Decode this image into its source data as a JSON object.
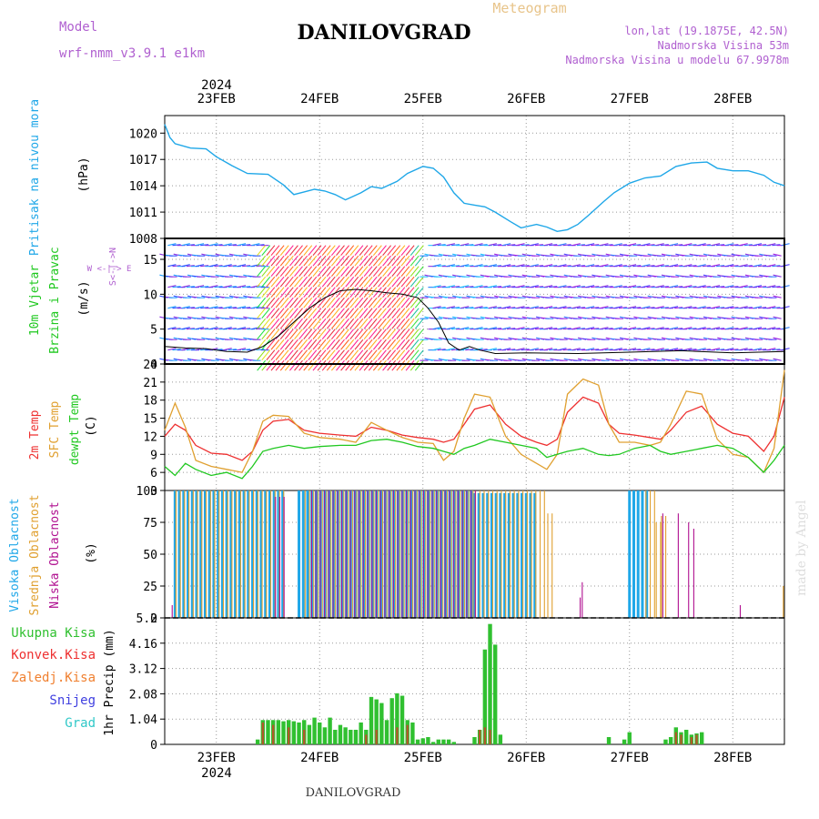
{
  "header": {
    "model_label": "Model",
    "model_name": "wrf-nmm_v3.9.1 e1km",
    "title": "DANILOVGRAD",
    "product": "Meteogram",
    "coords": "lon,lat (19.1875E, 42.5N)",
    "elevation": "Nadmorska Visina 53m",
    "model_elevation": "Nadmorska Visina u modelu 67.9978m"
  },
  "footer": {
    "station": "DANILOVGRAD",
    "credit": "made by Angel"
  },
  "colors": {
    "pressure": "#1fa7e8",
    "temp2m": "#ee3030",
    "sfc": "#e0a030",
    "dew": "#20c820",
    "cloud_high": "#1fa7e8",
    "cloud_mid": "#e0a030",
    "cloud_low": "#b01090",
    "precip_total": "#30c030",
    "precip_conv": "#b05a2a",
    "grid": "#999999"
  },
  "chart_data": {
    "type": "line",
    "x_axis": {
      "year": "2024",
      "labels": [
        "23FEB",
        "24FEB",
        "25FEB",
        "26FEB",
        "27FEB",
        "28FEB"
      ],
      "range_days": [
        22.5,
        28.5
      ]
    },
    "panels": [
      {
        "id": "pressure",
        "type": "line",
        "ylabel_desc": "Pritisak na nivou mora",
        "ylabel_unit": "(hPa)",
        "ylim": [
          1008,
          1022
        ],
        "yticks": [
          1008,
          1011,
          1014,
          1017,
          1020
        ],
        "series": [
          {
            "x": [
              22.5,
              22.55,
              22.6,
              22.75,
              22.9,
              23.0,
              23.15,
              23.3,
              23.5,
              23.65,
              23.75,
              23.85,
              23.95,
              24.05,
              24.15,
              24.25,
              24.4,
              24.5,
              24.6,
              24.75,
              24.85,
              25.0,
              25.1,
              25.2,
              25.3,
              25.4,
              25.5,
              25.6,
              25.7,
              25.85,
              25.95,
              26.1,
              26.2,
              26.3,
              26.4,
              26.5,
              26.6,
              26.75,
              26.85,
              27.0,
              27.15,
              27.3,
              27.45,
              27.6,
              27.75,
              27.85,
              28.0,
              28.15,
              28.3,
              28.4,
              28.5
            ],
            "y": [
              1021,
              1019.5,
              1018.8,
              1018.3,
              1018.2,
              1017.3,
              1016.3,
              1015.4,
              1015.3,
              1014.1,
              1013.0,
              1013.3,
              1013.6,
              1013.4,
              1013.0,
              1012.4,
              1013.2,
              1013.9,
              1013.7,
              1014.5,
              1015.4,
              1016.2,
              1016.0,
              1015.0,
              1013.2,
              1012.0,
              1011.8,
              1011.6,
              1011.0,
              1009.9,
              1009.2,
              1009.6,
              1009.3,
              1008.8,
              1009.0,
              1009.6,
              1010.6,
              1012.2,
              1013.2,
              1014.3,
              1014.9,
              1015.1,
              1016.2,
              1016.6,
              1016.7,
              1016.0,
              1015.7,
              1015.7,
              1015.2,
              1014.4,
              1014.0
            ]
          }
        ]
      },
      {
        "id": "wind",
        "type": "line",
        "ylabel_desc1": "10m Vjetar",
        "ylabel_desc2": "Brzina i Pravac",
        "ylabel_unit": "(m/s)",
        "compass": "W <-|-> E",
        "compass_sub": "S<-|->N",
        "ylim": [
          0,
          18
        ],
        "yticks": [
          0,
          5,
          10,
          15
        ],
        "speed_series": [
          {
            "x": [
              22.5,
              22.7,
              22.9,
              23.1,
              23.3,
              23.45,
              23.6,
              23.75,
              23.9,
              24.05,
              24.2,
              24.35,
              24.5,
              24.65,
              24.8,
              24.95,
              25.05,
              25.15,
              25.25,
              25.35,
              25.45,
              25.55,
              25.7,
              26.0,
              26.5,
              27.0,
              27.5,
              28.0,
              28.5
            ],
            "y": [
              2.5,
              2.3,
              2.2,
              1.8,
              1.7,
              2.5,
              4.0,
              6.0,
              8.0,
              9.5,
              10.5,
              10.7,
              10.5,
              10.2,
              10.0,
              9.5,
              8.0,
              6.0,
              3.0,
              2.0,
              2.5,
              2.0,
              1.5,
              1.6,
              1.5,
              1.7,
              1.9,
              1.6,
              1.8
            ]
          }
        ]
      },
      {
        "id": "temperature",
        "type": "line",
        "labels": [
          "2m Temp",
          "SFC Temp",
          "dewpt Temp"
        ],
        "ylabel_unit": "(C)",
        "ylim": [
          3,
          24
        ],
        "yticks": [
          3,
          6,
          9,
          12,
          15,
          18,
          21,
          24
        ],
        "series": [
          {
            "name": "2m Temp",
            "x": [
              22.5,
              22.6,
              22.7,
              22.8,
              22.95,
              23.1,
              23.25,
              23.35,
              23.45,
              23.55,
              23.7,
              23.85,
              24.0,
              24.2,
              24.35,
              24.5,
              24.65,
              24.8,
              24.95,
              25.1,
              25.2,
              25.3,
              25.4,
              25.5,
              25.65,
              25.8,
              25.95,
              26.1,
              26.2,
              26.3,
              26.4,
              26.55,
              26.7,
              26.8,
              26.9,
              27.05,
              27.2,
              27.3,
              27.4,
              27.55,
              27.7,
              27.85,
              28.0,
              28.15,
              28.3,
              28.4,
              28.5
            ],
            "y": [
              12,
              14,
              13,
              10.5,
              9.2,
              9.0,
              8.0,
              9.5,
              13,
              14.5,
              14.8,
              13.0,
              12.5,
              12.2,
              12.0,
              13.5,
              13.0,
              12.2,
              11.8,
              11.5,
              11.0,
              11.5,
              14.0,
              16.5,
              17.2,
              14.0,
              12.0,
              11.0,
              10.5,
              11.5,
              16.0,
              18.5,
              17.5,
              14.0,
              12.5,
              12.2,
              11.8,
              11.5,
              13.0,
              16.0,
              17.0,
              14.0,
              12.5,
              12.0,
              9.5,
              12.0,
              18.5
            ]
          },
          {
            "name": "SFC Temp",
            "x": [
              22.5,
              22.6,
              22.7,
              22.8,
              22.95,
              23.1,
              23.25,
              23.35,
              23.45,
              23.55,
              23.7,
              23.85,
              24.0,
              24.2,
              24.35,
              24.5,
              24.65,
              24.8,
              24.95,
              25.1,
              25.2,
              25.3,
              25.4,
              25.5,
              25.65,
              25.8,
              25.95,
              26.1,
              26.2,
              26.3,
              26.4,
              26.55,
              26.7,
              26.8,
              26.9,
              27.05,
              27.2,
              27.3,
              27.4,
              27.55,
              27.7,
              27.85,
              28.0,
              28.15,
              28.3,
              28.4,
              28.5
            ],
            "y": [
              13,
              17.5,
              13.5,
              8.0,
              7.0,
              6.5,
              6.0,
              9.5,
              14.5,
              15.5,
              15.3,
              12.5,
              11.8,
              11.5,
              11.0,
              14.3,
              13.0,
              11.8,
              11.0,
              10.8,
              8.0,
              9.5,
              15.0,
              19.0,
              18.5,
              12.0,
              9.0,
              7.5,
              6.5,
              9.0,
              19.0,
              21.5,
              20.5,
              14.0,
              11.0,
              11.0,
              10.5,
              11.0,
              14.0,
              19.5,
              19.0,
              11.5,
              9.0,
              8.5,
              6.0,
              10.0,
              23
            ]
          },
          {
            "name": "dewpt Temp",
            "x": [
              22.5,
              22.6,
              22.7,
              22.8,
              22.95,
              23.1,
              23.25,
              23.35,
              23.45,
              23.55,
              23.7,
              23.85,
              24.0,
              24.2,
              24.35,
              24.5,
              24.65,
              24.8,
              24.95,
              25.1,
              25.2,
              25.3,
              25.4,
              25.5,
              25.65,
              25.8,
              25.95,
              26.1,
              26.2,
              26.3,
              26.4,
              26.55,
              26.7,
              26.8,
              26.9,
              27.05,
              27.2,
              27.3,
              27.4,
              27.55,
              27.7,
              27.85,
              28.0,
              28.15,
              28.3,
              28.4,
              28.5
            ],
            "y": [
              7,
              5.5,
              7.5,
              6.5,
              5.5,
              6.0,
              5.0,
              7.0,
              9.5,
              10.0,
              10.5,
              10.0,
              10.3,
              10.5,
              10.5,
              11.3,
              11.5,
              11.0,
              10.3,
              10.0,
              9.5,
              9.0,
              10.0,
              10.5,
              11.5,
              11.0,
              10.5,
              10.0,
              8.5,
              9.0,
              9.5,
              10.0,
              9.0,
              8.8,
              9.0,
              10.0,
              10.5,
              9.5,
              9.0,
              9.5,
              10.0,
              10.5,
              10.0,
              8.5,
              6.0,
              8.0,
              10.5
            ]
          }
        ]
      },
      {
        "id": "clouds",
        "type": "bar",
        "labels": [
          "Visoka Oblacnost",
          "Srednja Oblacnost",
          "Niska Oblacnost"
        ],
        "ylabel_unit": "(%)",
        "ylim": [
          0,
          100
        ],
        "yticks": [
          0,
          25,
          50,
          75,
          100
        ],
        "series": [
          {
            "name": "Visoka Oblacnost",
            "segments": [
              [
                22.6,
                23.65,
                100
              ],
              [
                23.8,
                25.5,
                100
              ],
              [
                25.5,
                26.1,
                98
              ],
              [
                27.0,
                27.2,
                100
              ]
            ]
          },
          {
            "name": "Srednja Oblacnost",
            "segments": [
              [
                22.6,
                23.65,
                100
              ],
              [
                23.85,
                25.5,
                100
              ],
              [
                25.5,
                26.2,
                100
              ],
              [
                26.2,
                26.25,
                82
              ],
              [
                27.15,
                27.25,
                100
              ],
              [
                27.25,
                27.3,
                75
              ],
              [
                27.3,
                27.35,
                80
              ],
              [
                28.48,
                28.5,
                25
              ]
            ]
          },
          {
            "name": "Niska Oblacnost",
            "segments": [
              [
                22.55,
                22.56,
                10
              ],
              [
                23.55,
                23.65,
                95
              ],
              [
                23.9,
                25.5,
                100
              ],
              [
                26.5,
                26.52,
                16
              ],
              [
                26.52,
                26.53,
                28
              ],
              [
                27.3,
                27.32,
                82
              ],
              [
                27.45,
                27.47,
                82
              ],
              [
                27.55,
                27.57,
                75
              ],
              [
                27.6,
                27.62,
                70
              ],
              [
                28.05,
                28.07,
                10
              ]
            ]
          }
        ]
      },
      {
        "id": "precip",
        "type": "bar",
        "labels": [
          "Ukupna Kisa",
          "Konvek.Kisa",
          "Zaledj.Kisa",
          "Snijeg",
          "Grad"
        ],
        "ylabel": "1hr Precip (mm)",
        "ylim": [
          0,
          5.2
        ],
        "yticks": [
          0,
          1.04,
          2.08,
          3.12,
          4.16,
          5.2
        ],
        "total": {
          "x": [
            23.4,
            23.45,
            23.5,
            23.55,
            23.6,
            23.65,
            23.7,
            23.75,
            23.8,
            23.85,
            23.9,
            23.95,
            24.0,
            24.05,
            24.1,
            24.15,
            24.2,
            24.25,
            24.3,
            24.35,
            24.4,
            24.45,
            24.5,
            24.55,
            24.6,
            24.65,
            24.7,
            24.75,
            24.8,
            24.85,
            24.9,
            24.95,
            25.0,
            25.05,
            25.1,
            25.15,
            25.2,
            25.25,
            25.3,
            25.5,
            25.55,
            25.6,
            25.65,
            25.7,
            25.75,
            26.8,
            26.95,
            27.0,
            27.35,
            27.4,
            27.45,
            27.5,
            27.55,
            27.6,
            27.65,
            27.7
          ],
          "y": [
            0.2,
            1.0,
            1.0,
            1.0,
            1.0,
            0.95,
            1.0,
            0.95,
            0.9,
            1.0,
            0.8,
            1.1,
            0.9,
            0.7,
            1.1,
            0.6,
            0.8,
            0.7,
            0.6,
            0.6,
            0.9,
            0.6,
            1.95,
            1.85,
            1.7,
            1.0,
            1.9,
            2.1,
            2.0,
            1.0,
            0.9,
            0.2,
            0.25,
            0.3,
            0.1,
            0.2,
            0.2,
            0.2,
            0.1,
            0.3,
            0.6,
            3.9,
            4.95,
            4.1,
            0.4,
            0.3,
            0.2,
            0.5,
            0.2,
            0.3,
            0.7,
            0.5,
            0.6,
            0.4,
            0.45,
            0.5
          ]
        },
        "convective": {
          "x": [
            23.45,
            23.55,
            23.7,
            23.85,
            24.45,
            24.55,
            24.75,
            24.85,
            25.55,
            25.6,
            25.65,
            27.45,
            27.5,
            27.6,
            27.65
          ],
          "y": [
            0.9,
            0.8,
            0.7,
            0.6,
            0.4,
            0.6,
            0.7,
            0.8,
            0.6,
            0.7,
            0.6,
            0.5,
            0.4,
            0.3,
            0.4
          ]
        }
      }
    ]
  }
}
